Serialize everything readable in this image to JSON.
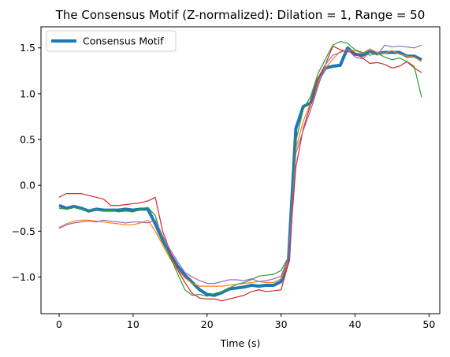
{
  "chart_data": {
    "type": "line",
    "title": "The Consensus Motif (Z-normalized): Dilation = 1, Range = 50",
    "xlabel": "Time (s)",
    "ylabel": "",
    "xlim": [
      -2.45,
      51.45
    ],
    "ylim": [
      -1.4,
      1.73
    ],
    "xticks": [
      0,
      10,
      20,
      30,
      40,
      50
    ],
    "xtick_labels": [
      "0",
      "10",
      "20",
      "30",
      "40",
      "50"
    ],
    "yticks": [
      -1.0,
      -0.5,
      0.0,
      0.5,
      1.0,
      1.5
    ],
    "ytick_labels": [
      "−1.0",
      "−0.5",
      "0.0",
      "0.5",
      "1.0",
      "1.5"
    ],
    "grid": false,
    "legend": {
      "position": "top-left",
      "entries": [
        "Consensus Motif"
      ]
    },
    "x": [
      0,
      1,
      2,
      3,
      4,
      5,
      6,
      7,
      8,
      9,
      10,
      11,
      12,
      13,
      14,
      15,
      16,
      17,
      18,
      19,
      20,
      21,
      22,
      23,
      24,
      25,
      26,
      27,
      28,
      29,
      30,
      31,
      32,
      33,
      34,
      35,
      36,
      37,
      38,
      39,
      40,
      41,
      42,
      43,
      44,
      45,
      46,
      47,
      48,
      49
    ],
    "series": [
      {
        "name": "Consensus Motif",
        "color": "#1f77b4",
        "linewidth": 4,
        "values": [
          -0.22,
          -0.25,
          -0.23,
          -0.25,
          -0.28,
          -0.26,
          -0.27,
          -0.27,
          -0.27,
          -0.26,
          -0.27,
          -0.26,
          -0.26,
          -0.42,
          -0.6,
          -0.75,
          -0.88,
          -0.98,
          -1.06,
          -1.14,
          -1.19,
          -1.2,
          -1.17,
          -1.13,
          -1.12,
          -1.11,
          -1.09,
          -1.1,
          -1.09,
          -1.09,
          -1.05,
          -0.82,
          0.62,
          0.86,
          0.9,
          1.15,
          1.28,
          1.3,
          1.31,
          1.5,
          1.43,
          1.42,
          1.46,
          1.44,
          1.45,
          1.45,
          1.45,
          1.41,
          1.41,
          1.37
        ]
      },
      {
        "name": "",
        "color": "#ff7f0e",
        "linewidth": 1.2,
        "values": [
          -0.46,
          -0.42,
          -0.39,
          -0.38,
          -0.38,
          -0.39,
          -0.4,
          -0.41,
          -0.42,
          -0.43,
          -0.43,
          -0.41,
          -0.38,
          -0.5,
          -0.65,
          -0.8,
          -0.92,
          -1.01,
          -1.07,
          -1.1,
          -1.1,
          -1.1,
          -1.1,
          -1.09,
          -1.08,
          -1.07,
          -1.06,
          -1.05,
          -1.06,
          -1.06,
          -1.02,
          -0.82,
          0.4,
          0.7,
          0.9,
          1.13,
          1.28,
          1.38,
          1.46,
          1.48,
          1.47,
          1.44,
          1.49,
          1.45,
          1.44,
          1.47,
          1.43,
          1.41,
          1.4,
          1.35
        ]
      },
      {
        "name": "",
        "color": "#2ca02c",
        "linewidth": 1.2,
        "values": [
          -0.25,
          -0.26,
          -0.24,
          -0.26,
          -0.27,
          -0.26,
          -0.28,
          -0.27,
          -0.29,
          -0.28,
          -0.29,
          -0.26,
          -0.24,
          -0.33,
          -0.6,
          -0.78,
          -0.96,
          -1.14,
          -1.2,
          -1.19,
          -1.21,
          -1.18,
          -1.16,
          -1.12,
          -1.08,
          -1.06,
          -1.03,
          -0.99,
          -0.98,
          -0.97,
          -0.93,
          -0.78,
          0.48,
          0.83,
          0.97,
          1.22,
          1.38,
          1.53,
          1.57,
          1.55,
          1.48,
          1.45,
          1.42,
          1.44,
          1.4,
          1.37,
          1.39,
          1.35,
          1.3,
          0.96
        ]
      },
      {
        "name": "",
        "color": "#d62728",
        "linewidth": 1.2,
        "values": [
          -0.13,
          -0.09,
          -0.09,
          -0.09,
          -0.11,
          -0.13,
          -0.15,
          -0.22,
          -0.22,
          -0.21,
          -0.2,
          -0.19,
          -0.17,
          -0.13,
          -0.5,
          -0.72,
          -0.92,
          -1.06,
          -1.18,
          -1.23,
          -1.24,
          -1.24,
          -1.26,
          -1.24,
          -1.22,
          -1.2,
          -1.16,
          -1.14,
          -1.16,
          -1.15,
          -1.14,
          -0.85,
          0.2,
          0.62,
          0.88,
          1.17,
          1.32,
          1.52,
          1.48,
          1.46,
          1.44,
          1.39,
          1.33,
          1.34,
          1.32,
          1.28,
          1.3,
          1.35,
          1.28,
          1.23
        ]
      },
      {
        "name": "",
        "color": "#9467bd",
        "linewidth": 1.2,
        "values": [
          -0.47,
          -0.43,
          -0.41,
          -0.4,
          -0.39,
          -0.4,
          -0.38,
          -0.39,
          -0.4,
          -0.41,
          -0.4,
          -0.4,
          -0.41,
          -0.38,
          -0.55,
          -0.7,
          -0.83,
          -0.95,
          -1.0,
          -1.04,
          -1.07,
          -1.07,
          -1.05,
          -1.03,
          -1.03,
          -1.04,
          -1.02,
          -1.05,
          -1.04,
          -1.02,
          -0.99,
          -0.78,
          0.35,
          0.6,
          0.82,
          1.08,
          1.32,
          1.42,
          1.45,
          1.48,
          1.4,
          1.38,
          1.45,
          1.42,
          1.53,
          1.51,
          1.52,
          1.51,
          1.5,
          1.53
        ]
      }
    ]
  }
}
